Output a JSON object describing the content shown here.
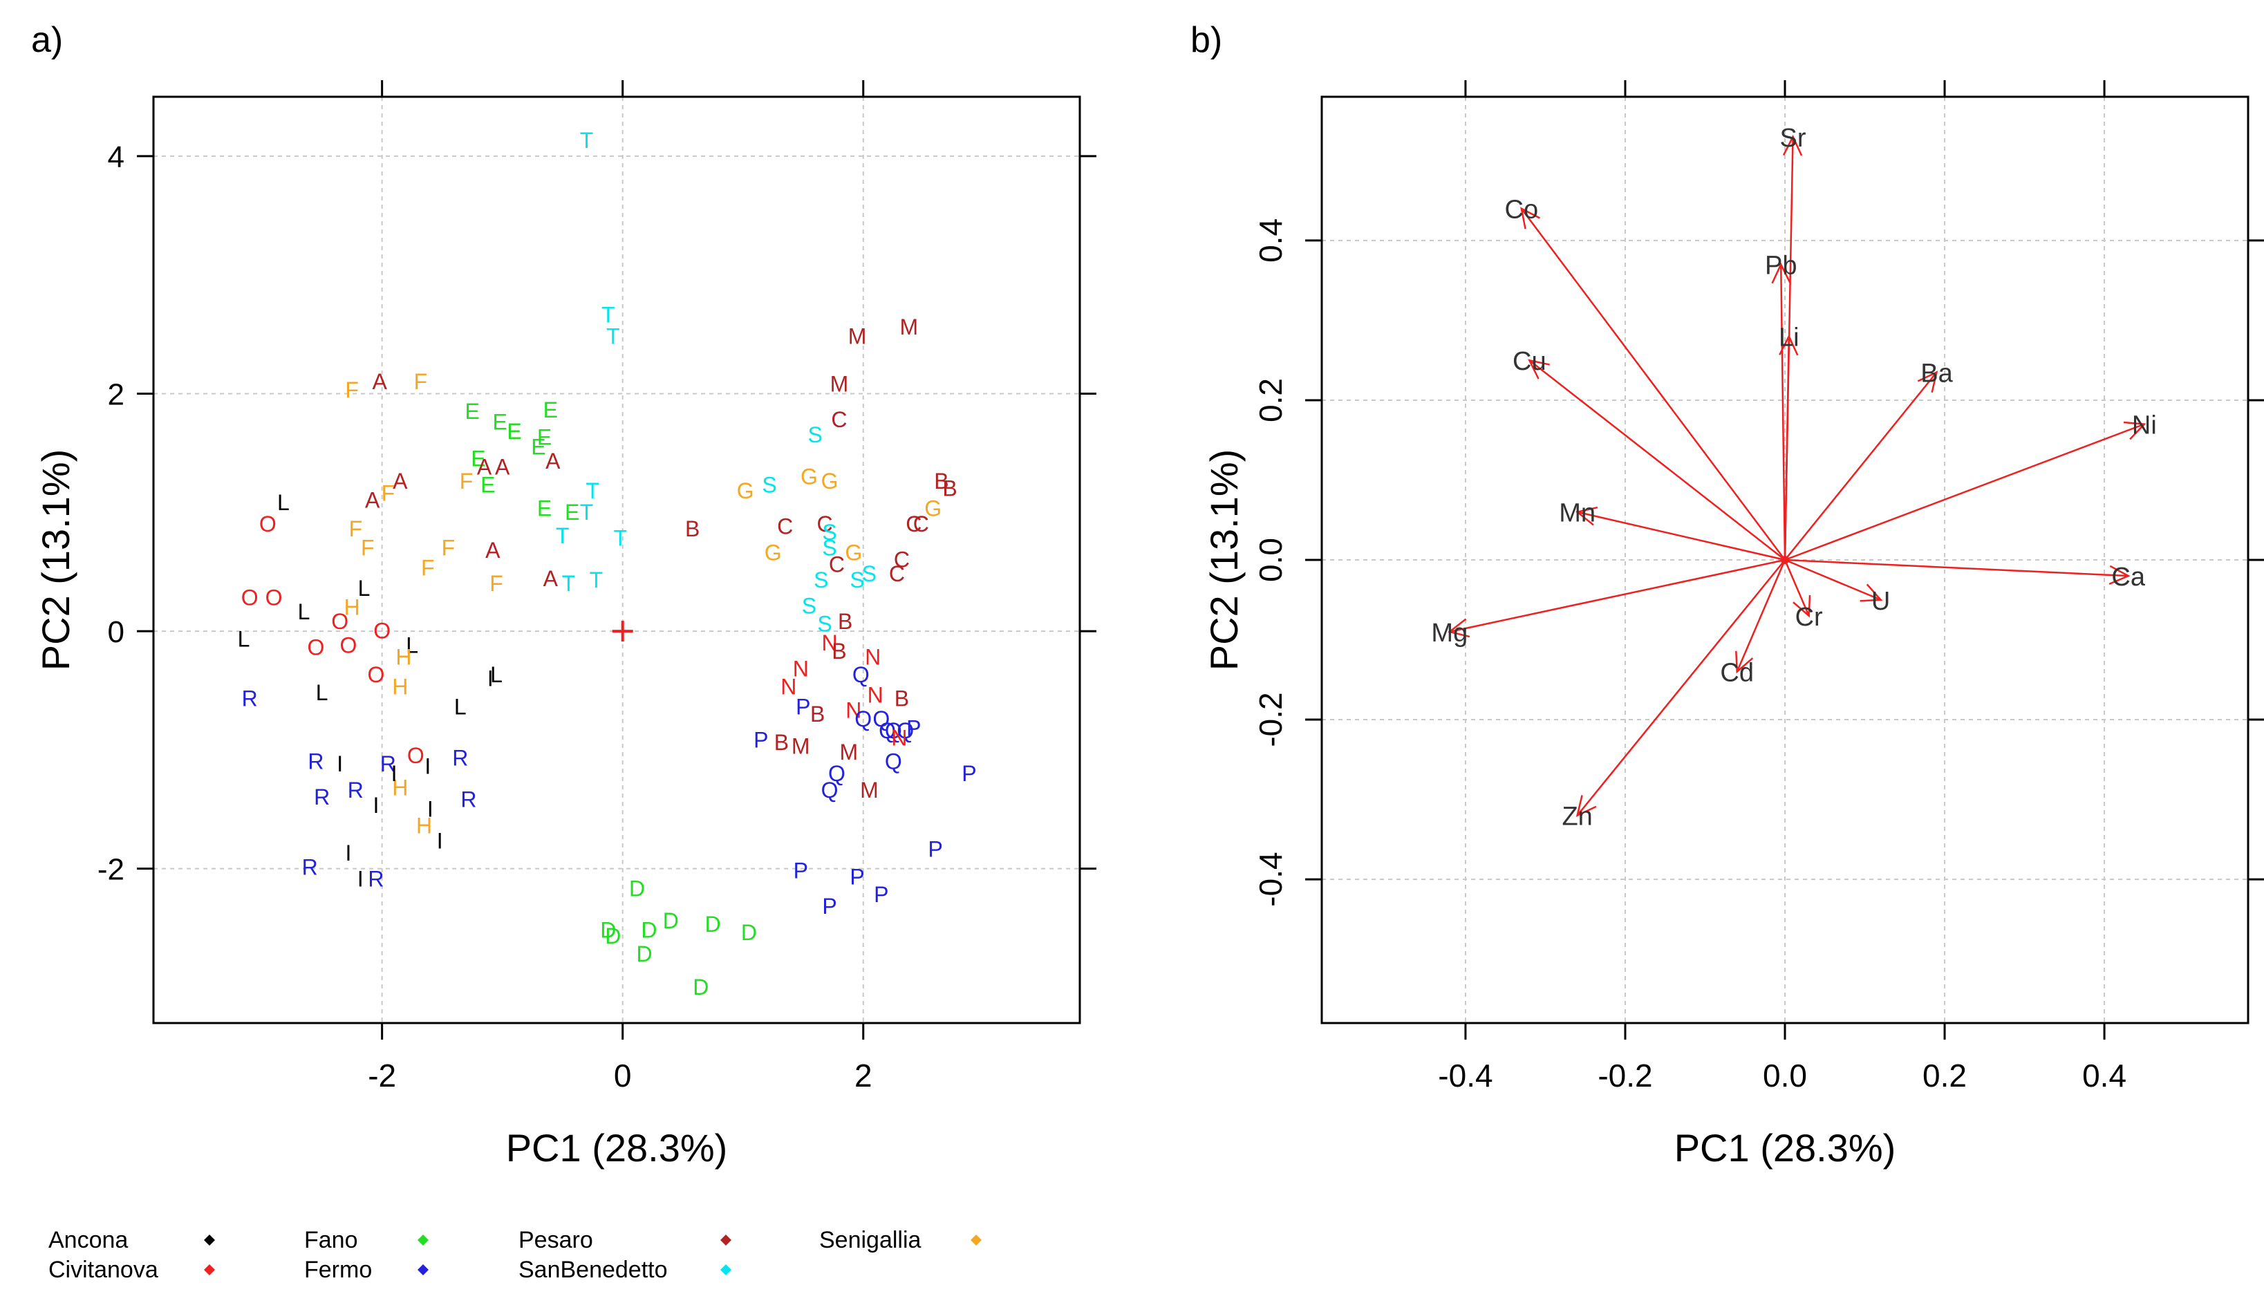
{
  "colors": {
    "Ancona": "#000000",
    "Civitanova": "#ee2020",
    "Fano": "#22dd22",
    "Fermo": "#2222dd",
    "Pesaro": "#b22222",
    "SanBenedetto": "#00e5ee",
    "Senigallia": "#f5a623",
    "arrow": "#ee2020",
    "grid": "#c8c8c8",
    "axis": "#000000"
  },
  "legend": [
    {
      "name": "Ancona",
      "marker": "diamond"
    },
    {
      "name": "Civitanova",
      "marker": "diamond"
    },
    {
      "name": "Fano",
      "marker": "diamond"
    },
    {
      "name": "Fermo",
      "marker": "diamond"
    },
    {
      "name": "Pesaro",
      "marker": "diamond"
    },
    {
      "name": "SanBenedetto",
      "marker": "diamond"
    },
    {
      "name": "Senigallia",
      "marker": "diamond"
    }
  ],
  "chart_data": [
    {
      "type": "scatter",
      "panel_label": "a)",
      "xlabel": "PC1 (28.3%)",
      "ylabel": "PC2 (13.1%)",
      "xlim": [
        -3.9,
        3.8
      ],
      "ylim": [
        -3.3,
        4.5
      ],
      "xticks": [
        -2,
        0,
        2
      ],
      "yticks": [
        -2,
        0,
        2,
        4
      ],
      "grid": true,
      "origin_marker": "+",
      "groups": {
        "A": "Pesaro",
        "B": "Pesaro",
        "C": "Pesaro",
        "M": "Pesaro",
        "D": "Fano",
        "E": "Fano",
        "F": "Senigallia",
        "G": "Senigallia",
        "H": "Senigallia",
        "I": "Ancona",
        "L": "Ancona",
        "N": "Civitanova",
        "O": "Civitanova",
        "P": "Fermo",
        "Q": "Fermo",
        "R": "Fermo",
        "S": "SanBenedetto",
        "T": "SanBenedetto"
      },
      "points": [
        {
          "label": "T",
          "x": -0.3,
          "y": 4.15
        },
        {
          "label": "T",
          "x": -0.12,
          "y": 2.68
        },
        {
          "label": "T",
          "x": -0.08,
          "y": 2.5
        },
        {
          "label": "T",
          "x": -0.25,
          "y": 1.2
        },
        {
          "label": "T",
          "x": -0.3,
          "y": 1.02
        },
        {
          "label": "T",
          "x": -0.5,
          "y": 0.82
        },
        {
          "label": "T",
          "x": -0.02,
          "y": 0.8
        },
        {
          "label": "T",
          "x": -0.22,
          "y": 0.45
        },
        {
          "label": "T",
          "x": -0.45,
          "y": 0.42
        },
        {
          "label": "F",
          "x": -2.25,
          "y": 2.05
        },
        {
          "label": "A",
          "x": -2.02,
          "y": 2.12
        },
        {
          "label": "F",
          "x": -1.68,
          "y": 2.12
        },
        {
          "label": "E",
          "x": -1.25,
          "y": 1.87
        },
        {
          "label": "E",
          "x": -1.02,
          "y": 1.78
        },
        {
          "label": "E",
          "x": -0.9,
          "y": 1.7
        },
        {
          "label": "E",
          "x": -0.6,
          "y": 1.88
        },
        {
          "label": "E",
          "x": -0.65,
          "y": 1.65
        },
        {
          "label": "E",
          "x": -0.7,
          "y": 1.57
        },
        {
          "label": "E",
          "x": -1.2,
          "y": 1.47
        },
        {
          "label": "A",
          "x": -1.15,
          "y": 1.4
        },
        {
          "label": "A",
          "x": -1.0,
          "y": 1.4
        },
        {
          "label": "A",
          "x": -0.58,
          "y": 1.45
        },
        {
          "label": "F",
          "x": -1.3,
          "y": 1.28
        },
        {
          "label": "E",
          "x": -1.12,
          "y": 1.25
        },
        {
          "label": "A",
          "x": -1.85,
          "y": 1.28
        },
        {
          "label": "F",
          "x": -1.95,
          "y": 1.18
        },
        {
          "label": "A",
          "x": -2.08,
          "y": 1.12
        },
        {
          "label": "E",
          "x": -0.65,
          "y": 1.05
        },
        {
          "label": "E",
          "x": -0.42,
          "y": 1.02
        },
        {
          "label": "L",
          "x": -2.82,
          "y": 1.1
        },
        {
          "label": "O",
          "x": -2.95,
          "y": 0.92
        },
        {
          "label": "F",
          "x": -2.22,
          "y": 0.88
        },
        {
          "label": "F",
          "x": -2.12,
          "y": 0.72
        },
        {
          "label": "F",
          "x": -1.45,
          "y": 0.72
        },
        {
          "label": "A",
          "x": -1.08,
          "y": 0.7
        },
        {
          "label": "F",
          "x": -1.62,
          "y": 0.55
        },
        {
          "label": "F",
          "x": -1.05,
          "y": 0.42
        },
        {
          "label": "A",
          "x": -0.6,
          "y": 0.46
        },
        {
          "label": "L",
          "x": -2.15,
          "y": 0.38
        },
        {
          "label": "O",
          "x": -3.1,
          "y": 0.3
        },
        {
          "label": "O",
          "x": -2.9,
          "y": 0.3
        },
        {
          "label": "L",
          "x": -2.65,
          "y": 0.18
        },
        {
          "label": "H",
          "x": -2.25,
          "y": 0.22
        },
        {
          "label": "O",
          "x": -2.35,
          "y": 0.1
        },
        {
          "label": "O",
          "x": -2.0,
          "y": 0.02
        },
        {
          "label": "O",
          "x": -2.55,
          "y": -0.12
        },
        {
          "label": "O",
          "x": -2.28,
          "y": -0.1
        },
        {
          "label": "L",
          "x": -3.15,
          "y": -0.05
        },
        {
          "label": "L",
          "x": -1.75,
          "y": -0.1
        },
        {
          "label": "H",
          "x": -1.82,
          "y": -0.2
        },
        {
          "label": "O",
          "x": -2.05,
          "y": -0.35
        },
        {
          "label": "H",
          "x": -1.85,
          "y": -0.45
        },
        {
          "label": "L",
          "x": -1.05,
          "y": -0.35
        },
        {
          "label": "I",
          "x": -1.1,
          "y": -0.38
        },
        {
          "label": "L",
          "x": -2.5,
          "y": -0.5
        },
        {
          "label": "R",
          "x": -3.1,
          "y": -0.55
        },
        {
          "label": "L",
          "x": -1.35,
          "y": -0.62
        },
        {
          "label": "R",
          "x": -2.55,
          "y": -1.08
        },
        {
          "label": "I",
          "x": -2.35,
          "y": -1.1
        },
        {
          "label": "R",
          "x": -1.95,
          "y": -1.1
        },
        {
          "label": "O",
          "x": -1.72,
          "y": -1.03
        },
        {
          "label": "I",
          "x": -1.62,
          "y": -1.12
        },
        {
          "label": "R",
          "x": -1.35,
          "y": -1.05
        },
        {
          "label": "R",
          "x": -2.5,
          "y": -1.38
        },
        {
          "label": "R",
          "x": -2.22,
          "y": -1.32
        },
        {
          "label": "H",
          "x": -1.85,
          "y": -1.3
        },
        {
          "label": "I",
          "x": -1.9,
          "y": -1.18
        },
        {
          "label": "I",
          "x": -2.05,
          "y": -1.45
        },
        {
          "label": "I",
          "x": -1.6,
          "y": -1.48
        },
        {
          "label": "R",
          "x": -1.28,
          "y": -1.4
        },
        {
          "label": "H",
          "x": -1.65,
          "y": -1.62
        },
        {
          "label": "I",
          "x": -1.52,
          "y": -1.75
        },
        {
          "label": "I",
          "x": -2.28,
          "y": -1.85
        },
        {
          "label": "R",
          "x": -2.6,
          "y": -1.97
        },
        {
          "label": "I",
          "x": -2.18,
          "y": -2.07
        },
        {
          "label": "R",
          "x": -2.05,
          "y": -2.07
        },
        {
          "label": "D",
          "x": 0.12,
          "y": -2.15
        },
        {
          "label": "D",
          "x": 0.4,
          "y": -2.42
        },
        {
          "label": "D",
          "x": -0.12,
          "y": -2.5
        },
        {
          "label": "D",
          "x": -0.08,
          "y": -2.55
        },
        {
          "label": "D",
          "x": 0.22,
          "y": -2.5
        },
        {
          "label": "D",
          "x": 0.75,
          "y": -2.45
        },
        {
          "label": "D",
          "x": 1.05,
          "y": -2.52
        },
        {
          "label": "D",
          "x": 0.18,
          "y": -2.7
        },
        {
          "label": "D",
          "x": 0.65,
          "y": -2.98
        },
        {
          "label": "M",
          "x": 1.95,
          "y": 2.5
        },
        {
          "label": "M",
          "x": 2.38,
          "y": 2.58
        },
        {
          "label": "M",
          "x": 1.8,
          "y": 2.1
        },
        {
          "label": "C",
          "x": 1.8,
          "y": 1.8
        },
        {
          "label": "S",
          "x": 1.6,
          "y": 1.67
        },
        {
          "label": "G",
          "x": 1.02,
          "y": 1.2
        },
        {
          "label": "S",
          "x": 1.22,
          "y": 1.25
        },
        {
          "label": "G",
          "x": 1.55,
          "y": 1.32
        },
        {
          "label": "G",
          "x": 1.72,
          "y": 1.28
        },
        {
          "label": "B",
          "x": 2.65,
          "y": 1.28
        },
        {
          "label": "B",
          "x": 2.72,
          "y": 1.22
        },
        {
          "label": "G",
          "x": 2.58,
          "y": 1.05
        },
        {
          "label": "C",
          "x": 1.35,
          "y": 0.9
        },
        {
          "label": "C",
          "x": 1.68,
          "y": 0.92
        },
        {
          "label": "S",
          "x": 1.72,
          "y": 0.85
        },
        {
          "label": "S",
          "x": 1.72,
          "y": 0.72
        },
        {
          "label": "C",
          "x": 2.42,
          "y": 0.92
        },
        {
          "label": "C",
          "x": 2.48,
          "y": 0.92
        },
        {
          "label": "B",
          "x": 0.58,
          "y": 0.88
        },
        {
          "label": "G",
          "x": 1.25,
          "y": 0.68
        },
        {
          "label": "G",
          "x": 1.92,
          "y": 0.68
        },
        {
          "label": "C",
          "x": 2.32,
          "y": 0.62
        },
        {
          "label": "C",
          "x": 1.78,
          "y": 0.58
        },
        {
          "label": "C",
          "x": 2.28,
          "y": 0.5
        },
        {
          "label": "S",
          "x": 1.65,
          "y": 0.45
        },
        {
          "label": "S",
          "x": 1.95,
          "y": 0.45
        },
        {
          "label": "S",
          "x": 2.05,
          "y": 0.5
        },
        {
          "label": "S",
          "x": 1.55,
          "y": 0.23
        },
        {
          "label": "S",
          "x": 1.68,
          "y": 0.08
        },
        {
          "label": "B",
          "x": 1.85,
          "y": 0.1
        },
        {
          "label": "N",
          "x": 1.72,
          "y": -0.08
        },
        {
          "label": "B",
          "x": 1.8,
          "y": -0.15
        },
        {
          "label": "N",
          "x": 2.08,
          "y": -0.2
        },
        {
          "label": "N",
          "x": 1.48,
          "y": -0.3
        },
        {
          "label": "Q",
          "x": 1.98,
          "y": -0.35
        },
        {
          "label": "N",
          "x": 1.38,
          "y": -0.45
        },
        {
          "label": "N",
          "x": 2.1,
          "y": -0.52
        },
        {
          "label": "B",
          "x": 2.32,
          "y": -0.55
        },
        {
          "label": "P",
          "x": 1.5,
          "y": -0.62
        },
        {
          "label": "B",
          "x": 1.62,
          "y": -0.68
        },
        {
          "label": "N",
          "x": 1.92,
          "y": -0.65
        },
        {
          "label": "Q",
          "x": 2.0,
          "y": -0.72
        },
        {
          "label": "Q",
          "x": 2.15,
          "y": -0.72
        },
        {
          "label": "Q",
          "x": 2.2,
          "y": -0.82
        },
        {
          "label": "Q",
          "x": 2.25,
          "y": -0.82
        },
        {
          "label": "Q",
          "x": 2.35,
          "y": -0.82
        },
        {
          "label": "P",
          "x": 2.42,
          "y": -0.8
        },
        {
          "label": "N",
          "x": 2.3,
          "y": -0.88
        },
        {
          "label": "P",
          "x": 1.15,
          "y": -0.9
        },
        {
          "label": "B",
          "x": 1.32,
          "y": -0.92
        },
        {
          "label": "M",
          "x": 1.48,
          "y": -0.95
        },
        {
          "label": "M",
          "x": 1.88,
          "y": -1.0
        },
        {
          "label": "Q",
          "x": 2.25,
          "y": -1.08
        },
        {
          "label": "Q",
          "x": 1.78,
          "y": -1.18
        },
        {
          "label": "Q",
          "x": 1.72,
          "y": -1.32
        },
        {
          "label": "M",
          "x": 2.05,
          "y": -1.32
        },
        {
          "label": "P",
          "x": 2.88,
          "y": -1.18
        },
        {
          "label": "P",
          "x": 2.6,
          "y": -1.82
        },
        {
          "label": "P",
          "x": 1.48,
          "y": -2.0
        },
        {
          "label": "P",
          "x": 1.95,
          "y": -2.05
        },
        {
          "label": "P",
          "x": 2.15,
          "y": -2.2
        },
        {
          "label": "P",
          "x": 1.72,
          "y": -2.3
        }
      ]
    },
    {
      "type": "vector",
      "panel_label": "b)",
      "xlabel": "PC1 (28.3%)",
      "ylabel": "PC2 (13.1%)",
      "xlim": [
        -0.58,
        0.58
      ],
      "ylim": [
        -0.58,
        0.58
      ],
      "xticks": [
        -0.4,
        -0.2,
        0.0,
        0.2,
        0.4
      ],
      "yticks": [
        -0.4,
        -0.2,
        0.0,
        0.2,
        0.4
      ],
      "xtick_labels": [
        "-0.4",
        "-0.2",
        "0.0",
        "0.2",
        "0.4"
      ],
      "ytick_labels": [
        "-0.4",
        "-0.2",
        "0.0",
        "0.2",
        "0.4"
      ],
      "grid": true,
      "vectors": [
        {
          "label": "Sr",
          "x": 0.01,
          "y": 0.53
        },
        {
          "label": "Co",
          "x": -0.33,
          "y": 0.44
        },
        {
          "label": "Pb",
          "x": -0.005,
          "y": 0.37
        },
        {
          "label": "Cu",
          "x": -0.32,
          "y": 0.25
        },
        {
          "label": "Li",
          "x": 0.005,
          "y": 0.28
        },
        {
          "label": "Ba",
          "x": 0.19,
          "y": 0.235
        },
        {
          "label": "Ni",
          "x": 0.45,
          "y": 0.17
        },
        {
          "label": "Mn",
          "x": -0.26,
          "y": 0.06
        },
        {
          "label": "Ca",
          "x": 0.43,
          "y": -0.02
        },
        {
          "label": "Mg",
          "x": -0.42,
          "y": -0.09
        },
        {
          "label": "U",
          "x": 0.12,
          "y": -0.05
        },
        {
          "label": "Cr",
          "x": 0.03,
          "y": -0.07
        },
        {
          "label": "Cd",
          "x": -0.06,
          "y": -0.14
        },
        {
          "label": "Zn",
          "x": -0.26,
          "y": -0.32
        }
      ]
    }
  ]
}
